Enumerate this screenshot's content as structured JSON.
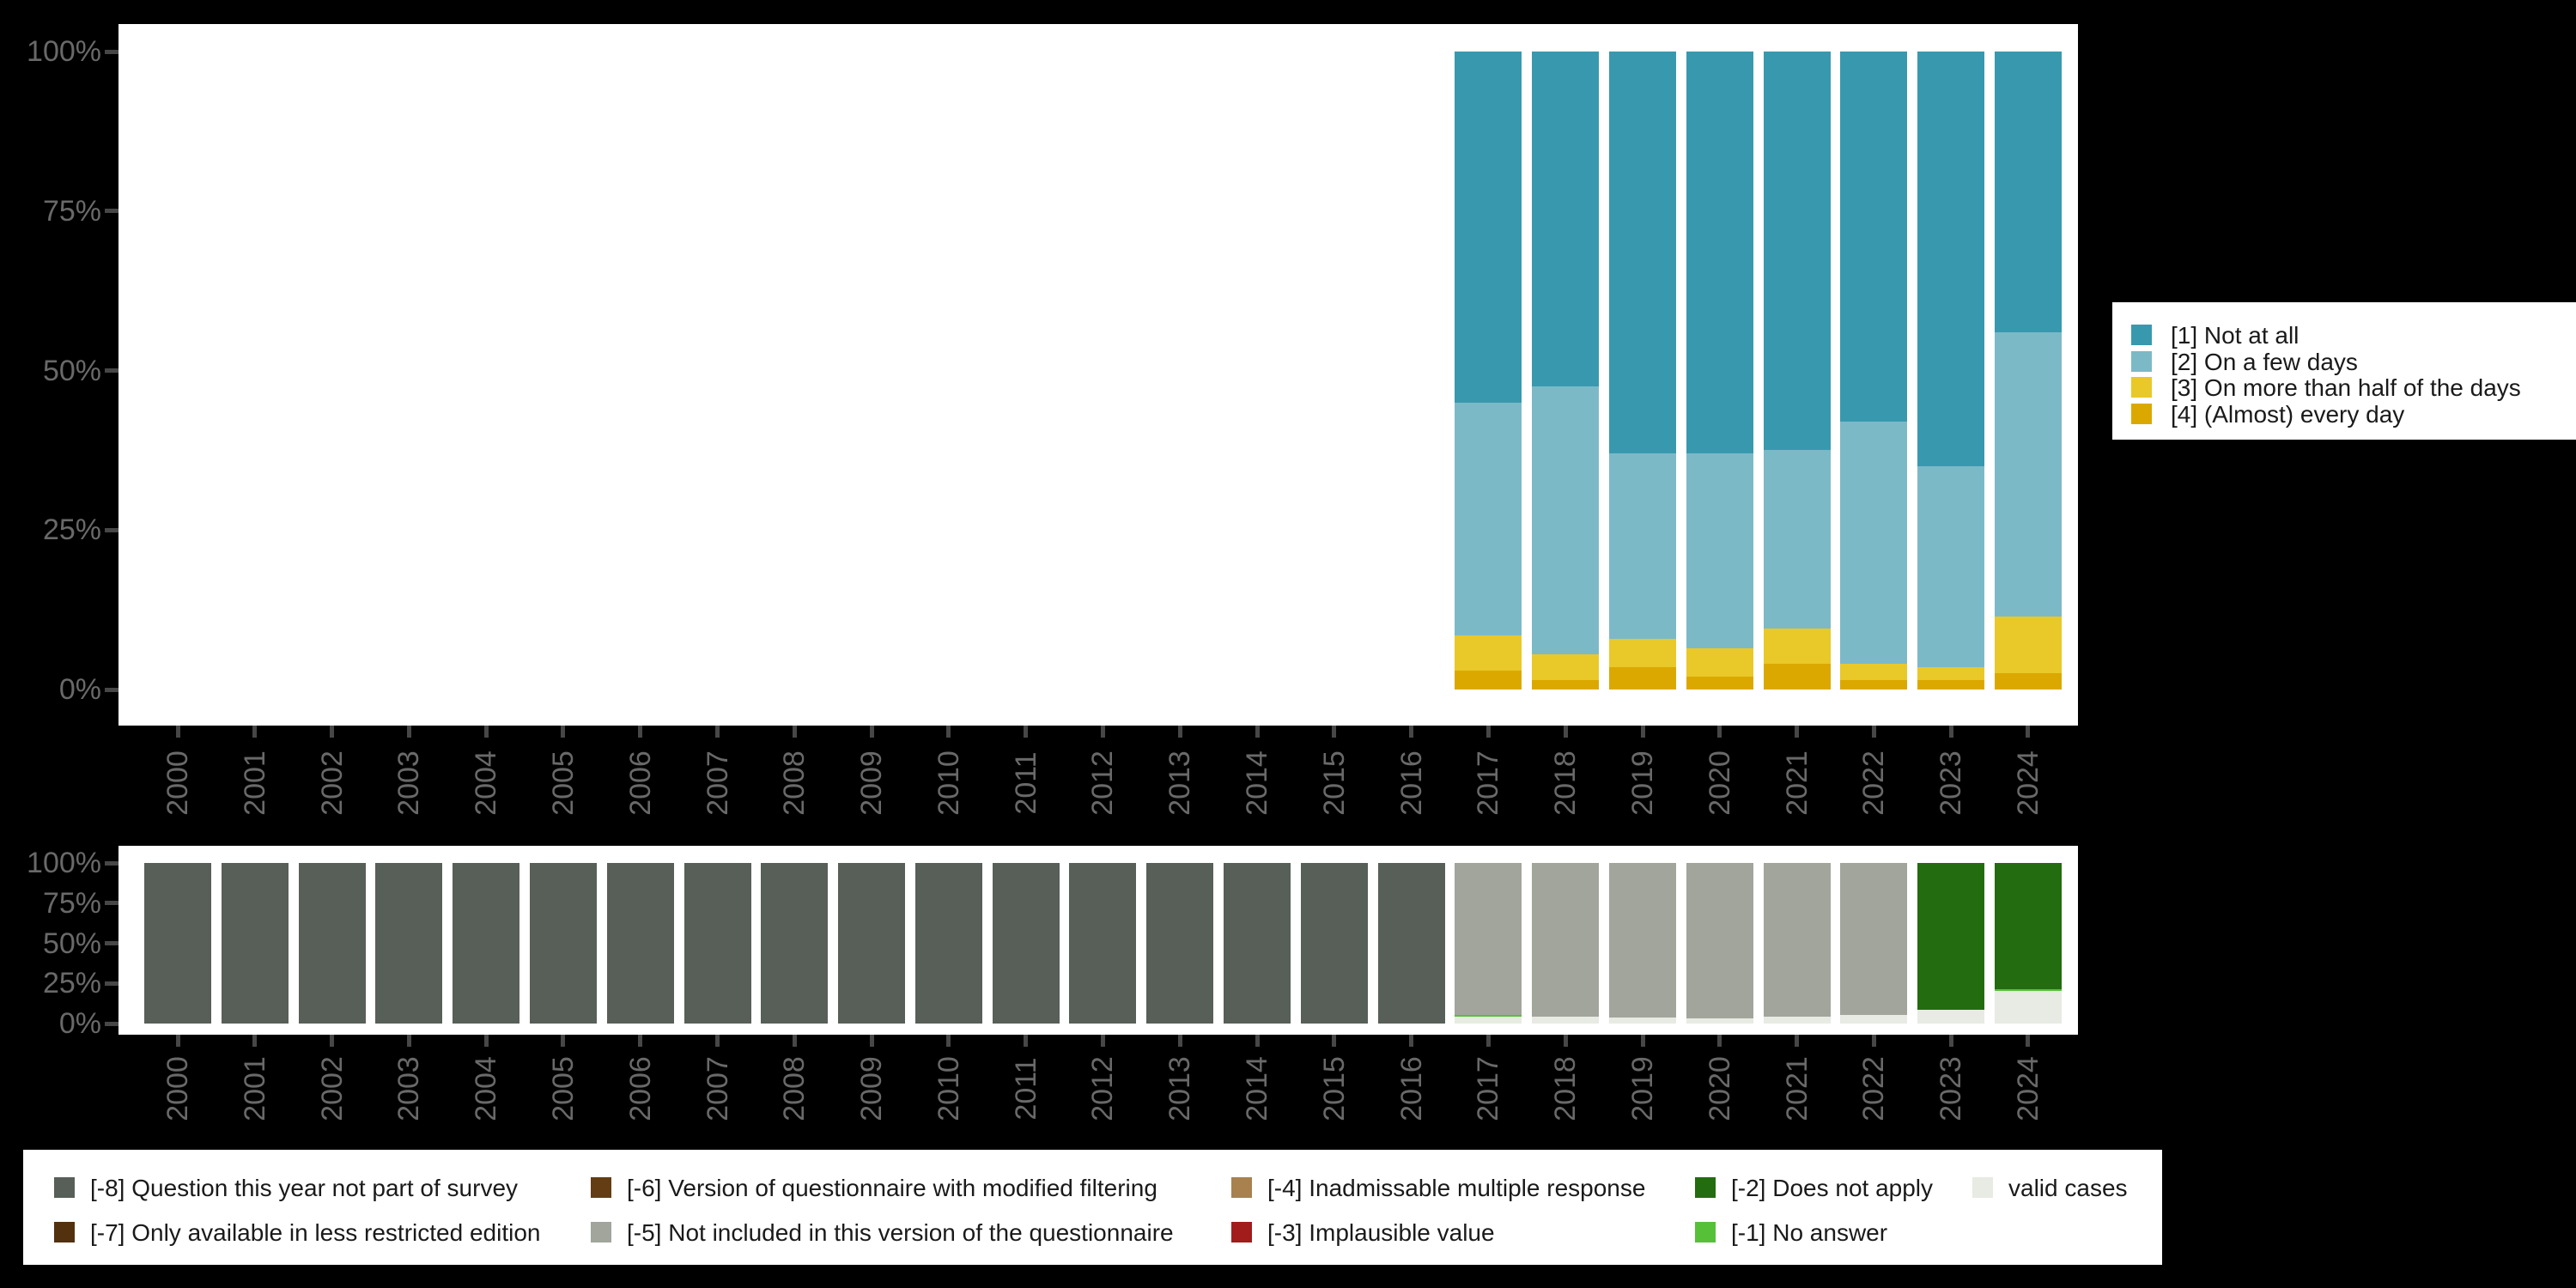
{
  "axes": {
    "x_tick_labels": [
      "2000",
      "2001",
      "2002",
      "2003",
      "2004",
      "2005",
      "2006",
      "2007",
      "2008",
      "2009",
      "2010",
      "2011",
      "2012",
      "2013",
      "2014",
      "2015",
      "2016",
      "2017",
      "2018",
      "2019",
      "2020",
      "2021",
      "2022",
      "2023",
      "2024"
    ],
    "y_tick_labels": [
      "0%",
      "25%",
      "50%",
      "75%",
      "100%"
    ]
  },
  "chart_data": [
    {
      "type": "bar",
      "stacked": true,
      "title": "",
      "xlabel": "",
      "ylabel": "",
      "unit": "percent",
      "ylim": [
        0,
        100
      ],
      "grid": false,
      "legend_position": "right",
      "categories": [
        "2017",
        "2018",
        "2019",
        "2020",
        "2021",
        "2022",
        "2023",
        "2024"
      ],
      "series": [
        {
          "key": "1",
          "name": "[1] Not at all",
          "color": "#3899ae",
          "values": [
            55,
            52.5,
            63,
            63,
            62.5,
            58,
            65,
            44
          ]
        },
        {
          "key": "2",
          "name": "[2] On a few days",
          "color": "#7cb9c7",
          "values": [
            36.5,
            42,
            29,
            30.5,
            28,
            38,
            31.5,
            44.5
          ]
        },
        {
          "key": "3",
          "name": "[3] On more than half of the days",
          "color": "#e9c829",
          "values": [
            5.5,
            4,
            4.5,
            4.5,
            5.5,
            2.5,
            2,
            9
          ]
        },
        {
          "key": "4",
          "name": "[4] (Almost) every day",
          "color": "#dba800",
          "values": [
            3,
            1.5,
            3.5,
            2,
            4,
            1.5,
            1.5,
            2.5
          ]
        }
      ]
    },
    {
      "type": "bar",
      "stacked": true,
      "title": "",
      "xlabel": "",
      "ylabel": "",
      "unit": "percent",
      "ylim": [
        0,
        100
      ],
      "grid": false,
      "legend_position": "bottom",
      "categories": [
        "2000",
        "2001",
        "2002",
        "2003",
        "2004",
        "2005",
        "2006",
        "2007",
        "2008",
        "2009",
        "2010",
        "2011",
        "2012",
        "2013",
        "2014",
        "2015",
        "2016",
        "2017",
        "2018",
        "2019",
        "2020",
        "2021",
        "2022",
        "2023",
        "2024"
      ],
      "series": [
        {
          "key": "-8",
          "name": "[-8] Question this year not part of survey",
          "color": "#575f58",
          "values": [
            100,
            100,
            100,
            100,
            100,
            100,
            100,
            100,
            100,
            100,
            100,
            100,
            100,
            100,
            100,
            100,
            100,
            0,
            0,
            0,
            0,
            0,
            0,
            0,
            0
          ]
        },
        {
          "key": "-7",
          "name": "[-7] Only available in less restricted edition",
          "color": "#53300e",
          "values": [
            0,
            0,
            0,
            0,
            0,
            0,
            0,
            0,
            0,
            0,
            0,
            0,
            0,
            0,
            0,
            0,
            0,
            0,
            0,
            0,
            0,
            0,
            0,
            0,
            0
          ]
        },
        {
          "key": "-6",
          "name": "[-6] Version of questionnaire with modified filtering",
          "color": "#643d14",
          "values": [
            0,
            0,
            0,
            0,
            0,
            0,
            0,
            0,
            0,
            0,
            0,
            0,
            0,
            0,
            0,
            0,
            0,
            0,
            0,
            0,
            0,
            0,
            0,
            0,
            0
          ]
        },
        {
          "key": "-5",
          "name": "[-5] Not included in this version of the questionnaire",
          "color": "#a1a59b",
          "values": [
            0,
            0,
            0,
            0,
            0,
            0,
            0,
            0,
            0,
            0,
            0,
            0,
            0,
            0,
            0,
            0,
            0,
            94.5,
            95.5,
            96,
            97,
            95.5,
            94.5,
            0,
            0
          ]
        },
        {
          "key": "-4",
          "name": "[-4] Inadmissable multiple response",
          "color": "#a8814f",
          "values": [
            0,
            0,
            0,
            0,
            0,
            0,
            0,
            0,
            0,
            0,
            0,
            0,
            0,
            0,
            0,
            0,
            0,
            0,
            0,
            0,
            0,
            0,
            0,
            0,
            0
          ]
        },
        {
          "key": "-3",
          "name": "[-3] Implausible value",
          "color": "#a21c1c",
          "values": [
            0,
            0,
            0,
            0,
            0,
            0,
            0,
            0,
            0,
            0,
            0,
            0,
            0,
            0,
            0,
            0,
            0,
            0,
            0,
            0,
            0,
            0,
            0,
            0,
            0
          ]
        },
        {
          "key": "-2",
          "name": "[-2] Does not apply",
          "color": "#236c10",
          "values": [
            0,
            0,
            0,
            0,
            0,
            0,
            0,
            0,
            0,
            0,
            0,
            0,
            0,
            0,
            0,
            0,
            0,
            0,
            0,
            0,
            0,
            0,
            0,
            91.5,
            78.5
          ]
        },
        {
          "key": "-1",
          "name": "[-1] No answer",
          "color": "#56c038",
          "values": [
            0,
            0,
            0,
            0,
            0,
            0,
            0,
            0,
            0,
            0,
            0,
            0,
            0,
            0,
            0,
            0,
            0,
            1,
            0,
            0,
            0,
            0,
            0,
            0,
            1
          ]
        },
        {
          "key": "valid",
          "name": "valid cases",
          "color": "#e7ebe3",
          "values": [
            0,
            0,
            0,
            0,
            0,
            0,
            0,
            0,
            0,
            0,
            0,
            0,
            0,
            0,
            0,
            0,
            0,
            4.5,
            4.5,
            4,
            3,
            4.5,
            5.5,
            8.5,
            20.5
          ]
        }
      ]
    }
  ]
}
